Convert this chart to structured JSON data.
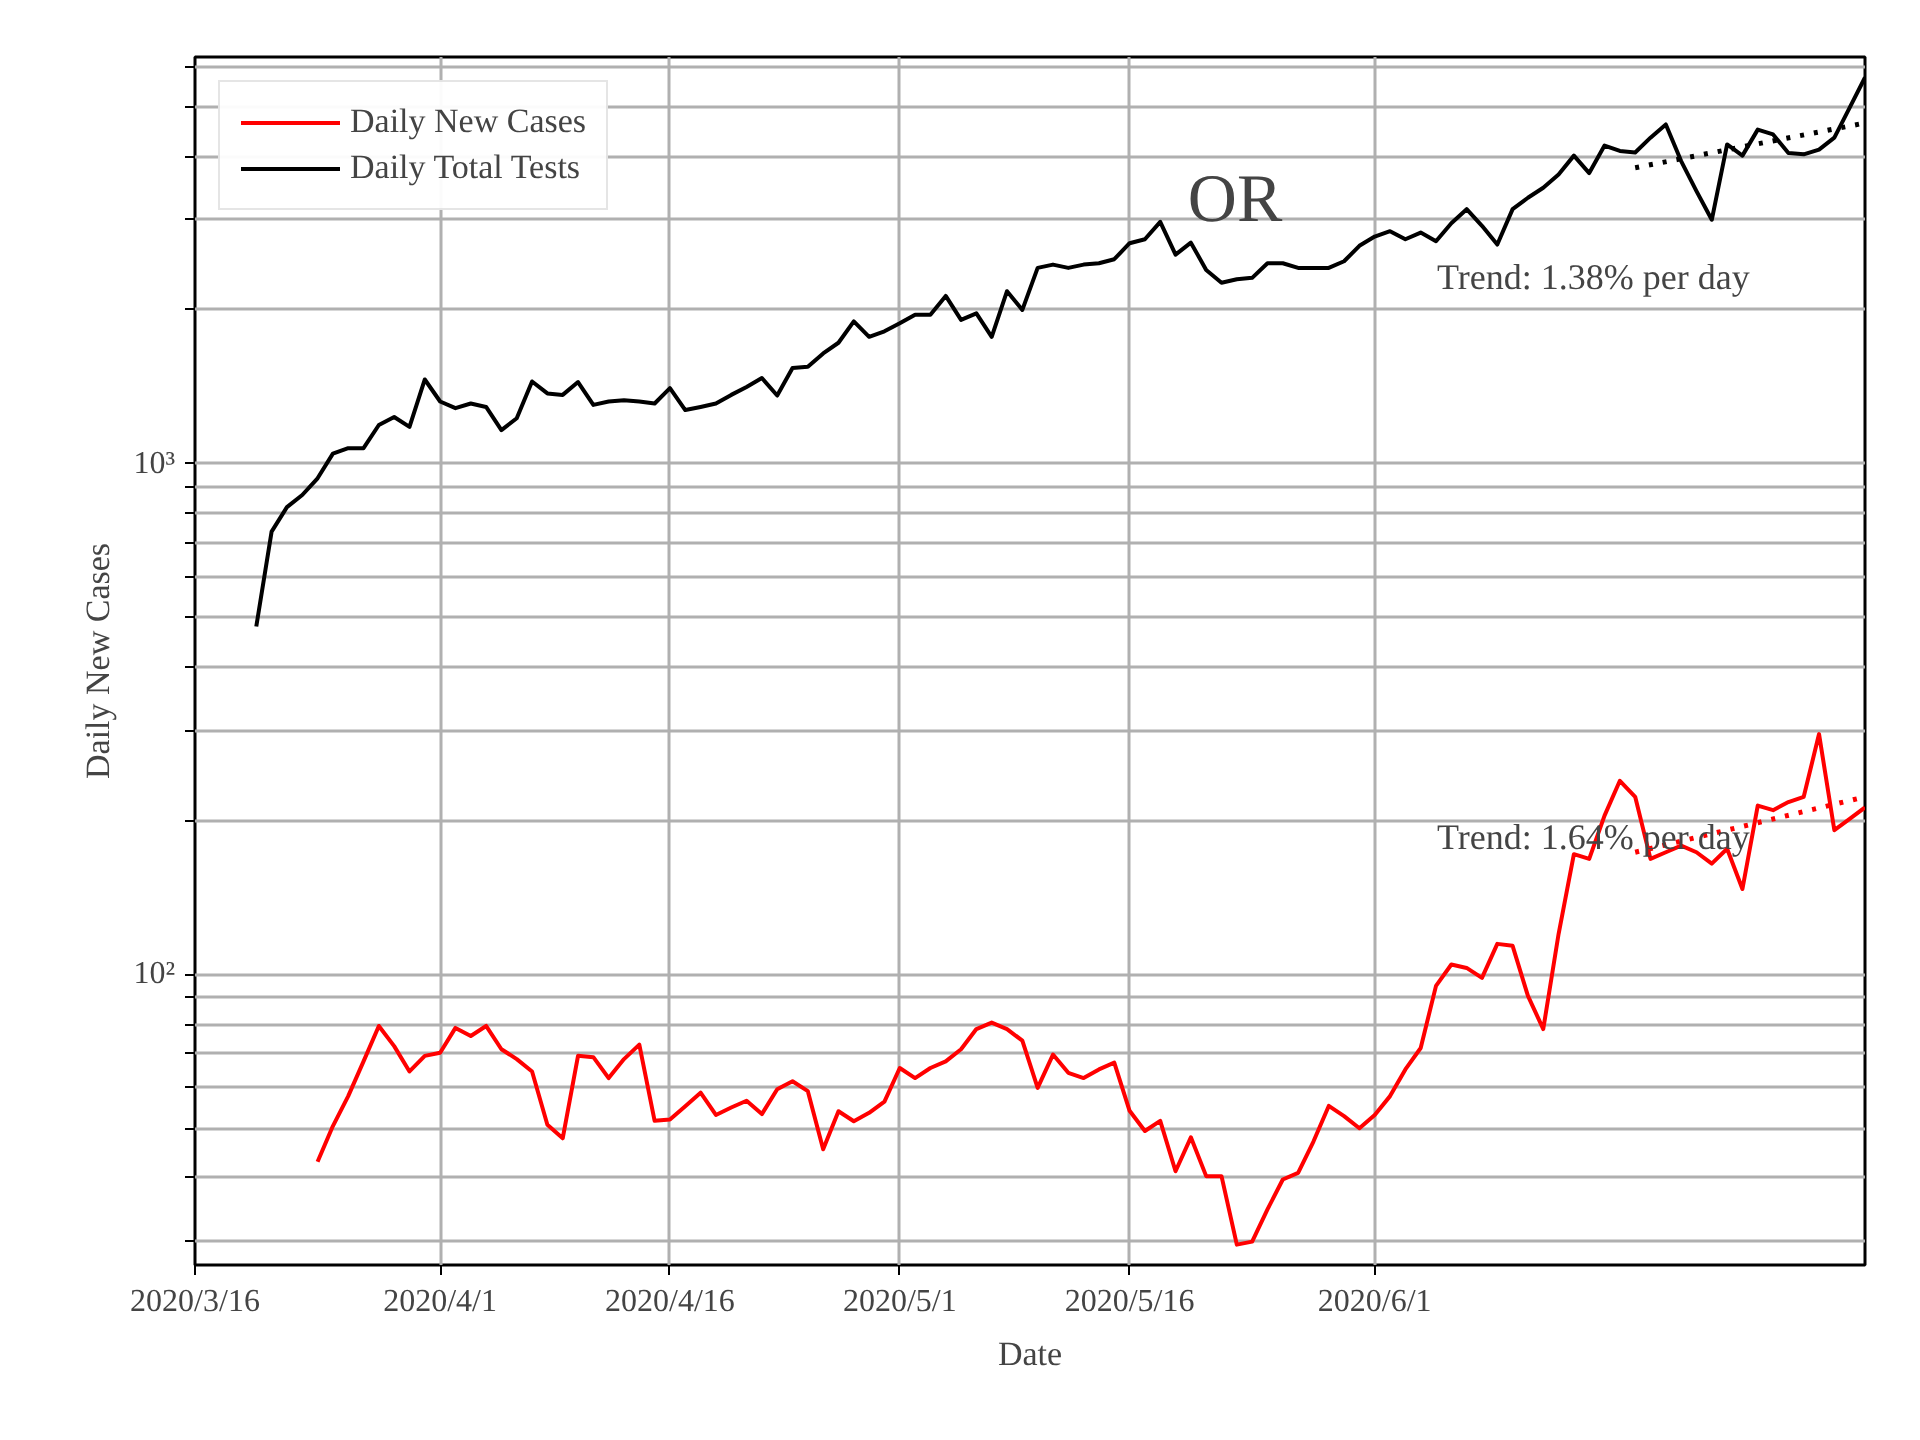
{
  "chart_data": {
    "type": "line",
    "title": "OR",
    "xlabel": "Date",
    "ylabel": "Daily New Cases",
    "log": "y",
    "grid": true,
    "legend": "top left",
    "line_style": "solid",
    "xlim": [
      "2020-03-16",
      "2020-07-03"
    ],
    "xticks": [
      {
        "value": "2020-03-16",
        "label": "2020/3/16"
      },
      {
        "value": "2020-04-01",
        "label": "2020/4/1"
      },
      {
        "value": "2020-04-16",
        "label": "2020/4/16"
      },
      {
        "value": "2020-05-01",
        "label": "2020/5/1"
      },
      {
        "value": "2020-05-16",
        "label": "2020/5/16"
      },
      {
        "value": "2020-06-01",
        "label": "2020/6/1"
      }
    ],
    "ylim": [
      27,
      6250
    ],
    "yticks": [
      {
        "value": 30,
        "label": null
      },
      {
        "value": 40,
        "label": null
      },
      {
        "value": 50,
        "label": null
      },
      {
        "value": 60,
        "label": null
      },
      {
        "value": 70,
        "label": null
      },
      {
        "value": 80,
        "label": null
      },
      {
        "value": 90,
        "label": null
      },
      {
        "value": 100,
        "label": "10²"
      },
      {
        "value": 200,
        "label": null
      },
      {
        "value": 300,
        "label": null
      },
      {
        "value": 400,
        "label": null
      },
      {
        "value": 500,
        "label": null
      },
      {
        "value": 600,
        "label": null
      },
      {
        "value": 700,
        "label": null
      },
      {
        "value": 800,
        "label": null
      },
      {
        "value": 900,
        "label": null
      },
      {
        "value": 1000,
        "label": "10³"
      },
      {
        "value": 2000,
        "label": null
      },
      {
        "value": 3000,
        "label": null
      },
      {
        "value": 4000,
        "label": null
      },
      {
        "value": 5000,
        "label": null
      },
      {
        "value": 6000,
        "label": null
      }
    ],
    "series": [
      {
        "name": "Daily New Cases",
        "color": "#ff0000",
        "x": [
          "2020-03-24",
          "2020-03-25",
          "2020-03-26",
          "2020-03-27",
          "2020-03-28",
          "2020-03-29",
          "2020-03-30",
          "2020-03-31",
          "2020-04-01",
          "2020-04-02",
          "2020-04-03",
          "2020-04-04",
          "2020-04-05",
          "2020-04-06",
          "2020-04-07",
          "2020-04-08",
          "2020-04-09",
          "2020-04-10",
          "2020-04-11",
          "2020-04-12",
          "2020-04-13",
          "2020-04-14",
          "2020-04-15",
          "2020-04-16",
          "2020-04-17",
          "2020-04-18",
          "2020-04-19",
          "2020-04-20",
          "2020-04-21",
          "2020-04-22",
          "2020-04-23",
          "2020-04-24",
          "2020-04-25",
          "2020-04-26",
          "2020-04-27",
          "2020-04-28",
          "2020-04-29",
          "2020-04-30",
          "2020-05-01",
          "2020-05-02",
          "2020-05-03",
          "2020-05-04",
          "2020-05-05",
          "2020-05-06",
          "2020-05-07",
          "2020-05-08",
          "2020-05-09",
          "2020-05-10",
          "2020-05-11",
          "2020-05-12",
          "2020-05-13",
          "2020-05-14",
          "2020-05-15",
          "2020-05-16",
          "2020-05-17",
          "2020-05-18",
          "2020-05-19",
          "2020-05-20",
          "2020-05-21",
          "2020-05-22",
          "2020-05-23",
          "2020-05-24",
          "2020-05-25",
          "2020-05-26",
          "2020-05-27",
          "2020-05-28",
          "2020-05-29",
          "2020-05-30",
          "2020-05-31",
          "2020-06-01",
          "2020-06-02",
          "2020-06-03",
          "2020-06-04",
          "2020-06-05",
          "2020-06-06",
          "2020-06-07",
          "2020-06-08",
          "2020-06-09",
          "2020-06-10",
          "2020-06-11",
          "2020-06-12",
          "2020-06-13",
          "2020-06-14",
          "2020-06-15",
          "2020-06-16",
          "2020-06-17",
          "2020-06-18",
          "2020-06-19",
          "2020-06-20",
          "2020-06-21",
          "2020-06-22",
          "2020-06-23",
          "2020-06-24",
          "2020-06-25",
          "2020-06-26",
          "2020-06-27",
          "2020-06-28",
          "2020-06-29",
          "2020-06-30",
          "2020-07-01",
          "2020-07-02",
          "2020-07-03"
        ],
        "values": [
          43,
          50.5,
          57.8,
          67.6,
          79.3,
          72.4,
          64.6,
          69.3,
          70.3,
          78.6,
          75.8,
          79.3,
          71.4,
          68.3,
          64.6,
          50.8,
          47.8,
          69.3,
          68.9,
          62.7,
          68.3,
          72.9,
          51.7,
          52.0,
          55.2,
          58.7,
          53.1,
          54.9,
          56.6,
          53.3,
          59.6,
          61.8,
          59.1,
          45.5,
          54.0,
          51.6,
          53.6,
          56.4,
          65.6,
          62.7,
          65.6,
          67.6,
          71.4,
          78.2,
          80.5,
          78.2,
          74.2,
          60.0,
          69.7,
          64.2,
          62.7,
          65.2,
          67.2,
          54.1,
          49.4,
          51.7,
          41.2,
          48.0,
          40.3,
          40.3,
          29.6,
          30.0,
          34.7,
          39.7,
          40.9,
          47.1,
          55.3,
          52.8,
          50.0,
          53.1,
          57.8,
          65.2,
          71.8,
          95.0,
          104.6,
          103.0,
          98.5,
          114.8,
          113.8,
          90.8,
          78.2,
          120,
          172,
          168.4,
          204.6,
          239.4,
          222.7,
          168.4,
          173.5,
          178.7,
          173.5,
          164.8,
          176.2,
          147.0,
          214.1,
          209.7,
          217.5,
          222.7,
          295.5,
          191.6,
          201.7,
          212.3
        ]
      },
      {
        "name": "Daily Total Tests",
        "color": "#000000",
        "x": [
          "2020-03-20",
          "2020-03-21",
          "2020-03-22",
          "2020-03-23",
          "2020-03-24",
          "2020-03-25",
          "2020-03-26",
          "2020-03-27",
          "2020-03-28",
          "2020-03-29",
          "2020-03-30",
          "2020-03-31",
          "2020-04-01",
          "2020-04-02",
          "2020-04-03",
          "2020-04-04",
          "2020-04-05",
          "2020-04-06",
          "2020-04-07",
          "2020-04-08",
          "2020-04-09",
          "2020-04-10",
          "2020-04-11",
          "2020-04-12",
          "2020-04-13",
          "2020-04-14",
          "2020-04-15",
          "2020-04-16",
          "2020-04-17",
          "2020-04-18",
          "2020-04-19",
          "2020-04-20",
          "2020-04-21",
          "2020-04-22",
          "2020-04-23",
          "2020-04-24",
          "2020-04-25",
          "2020-04-26",
          "2020-04-27",
          "2020-04-28",
          "2020-04-29",
          "2020-04-30",
          "2020-05-01",
          "2020-05-02",
          "2020-05-03",
          "2020-05-04",
          "2020-05-05",
          "2020-05-06",
          "2020-05-07",
          "2020-05-08",
          "2020-05-09",
          "2020-05-10",
          "2020-05-11",
          "2020-05-12",
          "2020-05-13",
          "2020-05-14",
          "2020-05-15",
          "2020-05-16",
          "2020-05-17",
          "2020-05-18",
          "2020-05-19",
          "2020-05-20",
          "2020-05-21",
          "2020-05-22",
          "2020-05-23",
          "2020-05-24",
          "2020-05-25",
          "2020-05-26",
          "2020-05-27",
          "2020-05-28",
          "2020-05-29",
          "2020-05-30",
          "2020-05-31",
          "2020-06-01",
          "2020-06-02",
          "2020-06-03",
          "2020-06-04",
          "2020-06-05",
          "2020-06-06",
          "2020-06-07",
          "2020-06-08",
          "2020-06-09",
          "2020-06-10",
          "2020-06-11",
          "2020-06-12",
          "2020-06-13",
          "2020-06-14",
          "2020-06-15",
          "2020-06-16",
          "2020-06-17",
          "2020-06-18",
          "2020-06-19",
          "2020-06-20",
          "2020-06-21",
          "2020-06-22",
          "2020-06-23",
          "2020-06-24",
          "2020-06-25",
          "2020-06-26",
          "2020-06-27",
          "2020-06-28",
          "2020-06-29",
          "2020-06-30",
          "2020-07-01",
          "2020-07-02",
          "2020-07-03"
        ],
        "values": [
          480,
          736,
          822,
          868,
          936,
          1046,
          1072,
          1072,
          1190,
          1234,
          1180,
          1461,
          1323,
          1284,
          1311,
          1291,
          1163,
          1227,
          1448,
          1372,
          1363,
          1444,
          1303,
          1323,
          1331,
          1323,
          1311,
          1405,
          1273,
          1291,
          1311,
          1363,
          1413,
          1471,
          1359,
          1539,
          1547,
          1643,
          1724,
          1898,
          1771,
          1815,
          1882,
          1956,
          1956,
          2129,
          1911,
          1968,
          1771,
          2175,
          1999,
          2416,
          2452,
          2416,
          2452,
          2467,
          2512,
          2700,
          2749,
          2973,
          2564,
          2707,
          2394,
          2260,
          2295,
          2310,
          2467,
          2467,
          2416,
          2416,
          2416,
          2489,
          2669,
          2782,
          2851,
          2749,
          2833,
          2725,
          2954,
          3148,
          2920,
          2684,
          3148,
          3314,
          3467,
          3681,
          4007,
          3704,
          4193,
          4092,
          4064,
          4345,
          4612,
          3910,
          3414,
          3001,
          4215,
          4007,
          4505,
          4409,
          4055,
          4030,
          4118,
          4345,
          4977,
          5698
        ]
      },
      {
        "color": "#ff0000",
        "line_style": "dotted",
        "x": [
          "2020-06-18",
          "2020-07-03"
        ],
        "values": [
          173.5,
          222.7
        ]
      },
      {
        "color": "#000000",
        "line_style": "dotted",
        "x": [
          "2020-06-18",
          "2020-07-03"
        ],
        "values": [
          3795,
          4642
        ]
      }
    ],
    "annotations": [
      "Trend: 1.38% per day",
      "Trend: 1.64% per day"
    ]
  }
}
